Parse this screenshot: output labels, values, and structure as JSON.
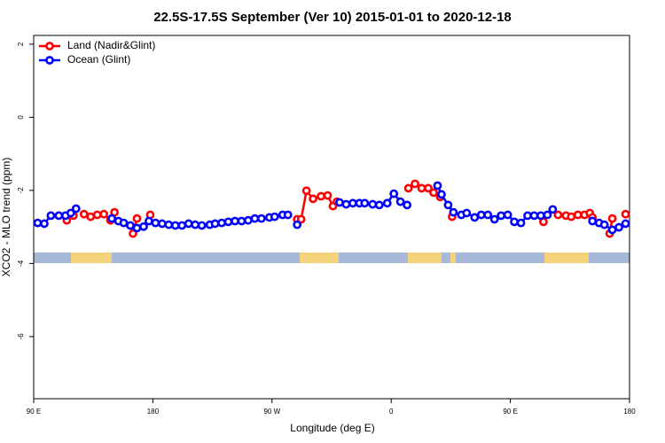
{
  "chart_data": {
    "type": "line",
    "title": "22.5S-17.5S September (Ver 10)   2015-01-01 to 2020-12-18",
    "x_label": "Longitude (deg E)",
    "y_label": "XCO2 - MLO trend (ppm)",
    "xlim": [
      90,
      540
    ],
    "xticks": [
      {
        "value": 90,
        "label": "90 E"
      },
      {
        "value": 180,
        "label": "180"
      },
      {
        "value": 270,
        "label": "90 W"
      },
      {
        "value": 360,
        "label": "0"
      },
      {
        "value": 450,
        "label": "90 E"
      },
      {
        "value": 540,
        "label": "180"
      }
    ],
    "ylim": [
      -7.7,
      2.24
    ],
    "yticks": [
      -6,
      -4,
      -2,
      0,
      2
    ],
    "legend": "top-left",
    "series": [
      {
        "name": "Land (Nadir&Glint)",
        "color": "#ff0000",
        "x": [
          115,
          120,
          128,
          133,
          138,
          143,
          148,
          151,
          165,
          168,
          178,
          289,
          292,
          296,
          301,
          307,
          312,
          316,
          319,
          373,
          378,
          383,
          388,
          392,
          397,
          406,
          475,
          486,
          492,
          496,
          501,
          506,
          510,
          512,
          525,
          527,
          537
        ],
        "values": [
          -2.82,
          -2.69,
          -2.65,
          -2.72,
          -2.67,
          -2.65,
          -2.82,
          -2.6,
          -3.18,
          -2.77,
          -2.67,
          -2.79,
          -2.79,
          -2.01,
          -2.23,
          -2.16,
          -2.14,
          -2.43,
          -2.31,
          -1.94,
          -1.82,
          -1.94,
          -1.94,
          -2.06,
          -2.18,
          -2.72,
          -2.86,
          -2.67,
          -2.69,
          -2.72,
          -2.67,
          -2.67,
          -2.62,
          -2.74,
          -3.18,
          -2.77,
          -2.65
        ]
      },
      {
        "name": "Ocean (Glint)",
        "color": "#0000ff",
        "x": [
          93,
          98,
          103,
          109,
          114,
          118,
          122,
          149,
          154,
          158,
          163,
          168,
          173,
          177,
          182,
          187,
          192,
          197,
          202,
          207,
          212,
          217,
          223,
          227,
          232,
          237,
          242,
          247,
          252,
          257,
          262,
          268,
          272,
          278,
          282,
          289,
          321,
          326,
          331,
          336,
          340,
          346,
          351,
          357,
          362,
          367,
          372,
          395,
          398,
          403,
          407,
          413,
          417,
          423,
          428,
          433,
          438,
          443,
          448,
          453,
          458,
          463,
          468,
          473,
          478,
          482,
          512,
          517,
          521,
          527,
          532,
          537
        ],
        "values": [
          -2.89,
          -2.91,
          -2.69,
          -2.69,
          -2.69,
          -2.62,
          -2.5,
          -2.77,
          -2.84,
          -2.89,
          -2.96,
          -3.03,
          -2.99,
          -2.84,
          -2.89,
          -2.91,
          -2.94,
          -2.96,
          -2.96,
          -2.91,
          -2.94,
          -2.96,
          -2.94,
          -2.91,
          -2.89,
          -2.86,
          -2.84,
          -2.84,
          -2.82,
          -2.77,
          -2.77,
          -2.74,
          -2.72,
          -2.67,
          -2.67,
          -2.94,
          -2.33,
          -2.38,
          -2.35,
          -2.35,
          -2.35,
          -2.38,
          -2.4,
          -2.35,
          -2.09,
          -2.31,
          -2.4,
          -1.87,
          -2.11,
          -2.4,
          -2.6,
          -2.67,
          -2.62,
          -2.74,
          -2.67,
          -2.67,
          -2.79,
          -2.69,
          -2.67,
          -2.86,
          -2.89,
          -2.69,
          -2.69,
          -2.69,
          -2.67,
          -2.52,
          -2.84,
          -2.89,
          -2.94,
          -3.08,
          -3.01,
          -2.91
        ]
      }
    ]
  }
}
